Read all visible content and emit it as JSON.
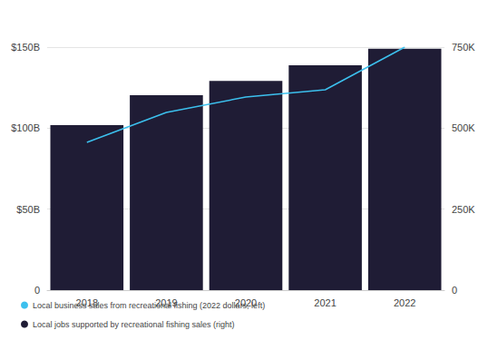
{
  "chart_data": {
    "type": "bar",
    "categories": [
      "2018",
      "2019",
      "2020",
      "2021",
      "2022"
    ],
    "series": [
      {
        "name": "Local business sales from recreational fishing (2022 dollars, left)",
        "type": "line",
        "color": "#3cc0ee",
        "values": [
          91.2,
          109.7,
          119.2,
          123.7,
          150
        ]
      },
      {
        "name": "Local jobs supported by recreational fishing sales (right)",
        "type": "bar",
        "axis": "y2",
        "color": "#1f1c35",
        "values": [
          509000,
          602000,
          646000,
          694000,
          745000
        ]
      }
    ],
    "ylim": [
      0,
      150
    ],
    "yticks": [
      0,
      {
        "value": 50,
        "label": "$50B"
      },
      {
        "value": 100,
        "label": "$100B"
      },
      {
        "value": 150,
        "label": "$150B"
      }
    ],
    "y2lim": [
      0,
      750000
    ],
    "y2ticks": [
      0,
      {
        "value": 250000,
        "label": "250K"
      },
      {
        "value": 500000,
        "label": "500K"
      },
      {
        "value": 750000,
        "label": "750K"
      }
    ],
    "grid": true,
    "legend": "bottom"
  }
}
